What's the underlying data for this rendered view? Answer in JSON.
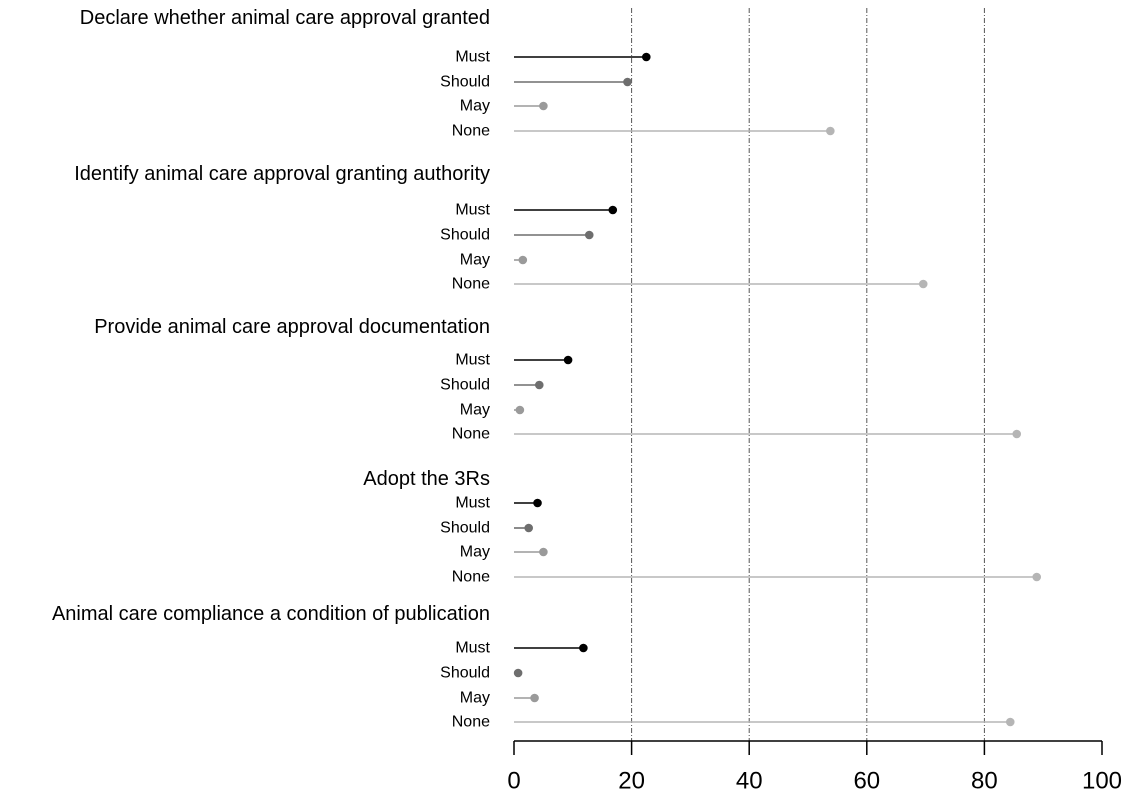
{
  "chart_data": {
    "type": "lollipop",
    "xlim": [
      0,
      100
    ],
    "x_ticks": [
      0,
      20,
      40,
      60,
      80,
      100
    ],
    "gridlines_at": [
      20,
      40,
      60,
      80
    ],
    "grid": true,
    "category_colors": {
      "Must": "#000000",
      "Should": "#6e6e6e",
      "May": "#9a9a9a",
      "None": "#b5b5b5"
    },
    "groups": [
      {
        "title": "Declare whether animal care approval granted",
        "items": [
          {
            "label": "Must",
            "value": 22.5
          },
          {
            "label": "Should",
            "value": 19.3
          },
          {
            "label": "May",
            "value": 5.0
          },
          {
            "label": "None",
            "value": 53.8
          }
        ]
      },
      {
        "title": "Identify animal care approval granting authority",
        "items": [
          {
            "label": "Must",
            "value": 16.8
          },
          {
            "label": "Should",
            "value": 12.8
          },
          {
            "label": "May",
            "value": 1.5
          },
          {
            "label": "None",
            "value": 69.6
          }
        ]
      },
      {
        "title": "Provide animal care approval documentation",
        "items": [
          {
            "label": "Must",
            "value": 9.2
          },
          {
            "label": "Should",
            "value": 4.3
          },
          {
            "label": "May",
            "value": 1.0
          },
          {
            "label": "None",
            "value": 85.5
          }
        ]
      },
      {
        "title": "Adopt the 3Rs",
        "items": [
          {
            "label": "Must",
            "value": 4.0
          },
          {
            "label": "Should",
            "value": 2.5
          },
          {
            "label": "May",
            "value": 5.0
          },
          {
            "label": "None",
            "value": 88.9
          }
        ]
      },
      {
        "title": "Animal care compliance a condition of publication",
        "items": [
          {
            "label": "Must",
            "value": 11.8
          },
          {
            "label": "Should",
            "value": 0.7
          },
          {
            "label": "May",
            "value": 3.5
          },
          {
            "label": "None",
            "value": 84.4
          }
        ]
      }
    ]
  }
}
